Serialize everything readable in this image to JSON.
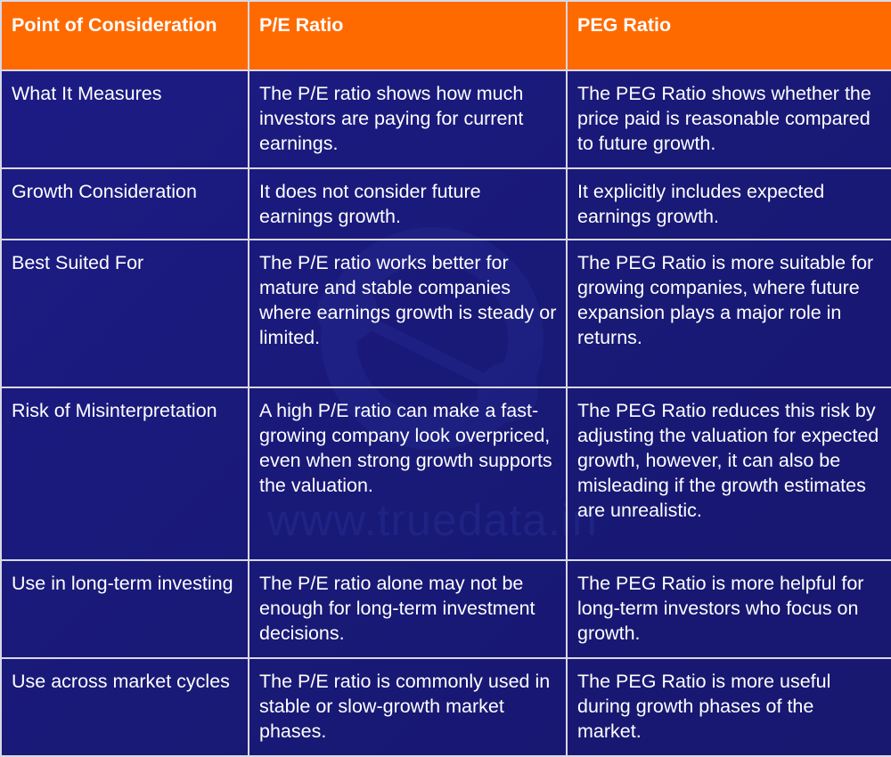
{
  "table": {
    "headers": [
      "Point of Consideration",
      "P/E Ratio",
      "PEG Ratio"
    ],
    "rows": [
      [
        "What It Measures",
        "The P/E ratio shows how much investors are paying for current earnings.",
        "The PEG Ratio shows whether the price paid is reasonable compared to future growth."
      ],
      [
        "Growth Consideration",
        "It does not consider future earnings growth.",
        "It explicitly includes expected earnings growth."
      ],
      [
        "Best Suited For",
        "The P/E ratio works better for mature and stable companies where earnings growth is steady or limited.",
        "The PEG Ratio is more suitable for growing companies, where future expansion plays a major role in returns."
      ],
      [
        "Risk of Misinterpretation",
        "A high P/E ratio can make a fast-growing company look overpriced, even when strong growth supports the valuation.",
        "The PEG Ratio reduces this risk by adjusting the valuation for expected growth, however, it can also be misleading if the growth estimates are unrealistic."
      ],
      [
        "Use in long-term investing",
        "The P/E ratio alone may not be enough for long-term investment decisions.",
        "The PEG Ratio is more helpful for long-term investors who focus on growth."
      ],
      [
        "Use across market cycles",
        "The P/E ratio is commonly used in stable or slow-growth market phases.",
        "The PEG Ratio is more useful during growth phases of the market."
      ]
    ]
  },
  "watermark": {
    "text": "www.truedata.in"
  },
  "colors": {
    "header_bg": "#ff6a00",
    "body_bg": "#1e1d8c",
    "border": "#d9d9e6",
    "text": "#ffffff"
  }
}
